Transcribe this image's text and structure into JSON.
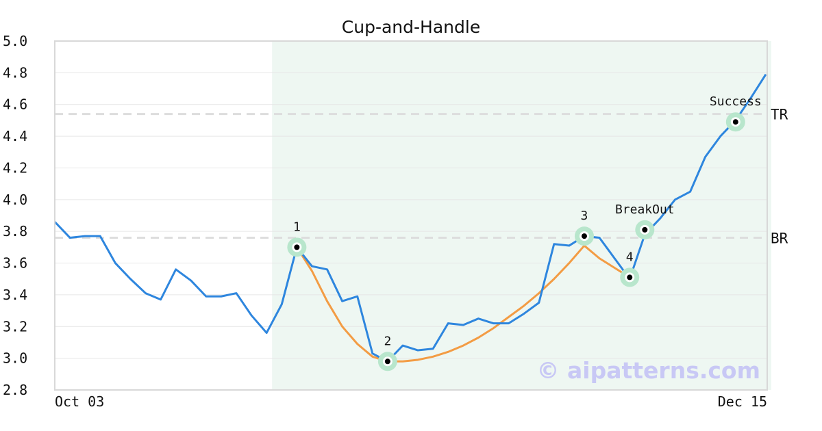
{
  "chart_data": {
    "type": "line",
    "title": "Cup-and-Handle",
    "x_tick_labels": [
      "Oct 03",
      "Dec 15"
    ],
    "ylim": [
      2.8,
      5.0
    ],
    "y_ticks": [
      "2.8",
      "3.0",
      "3.2",
      "3.4",
      "3.6",
      "3.8",
      "4.0",
      "4.2",
      "4.4",
      "4.6",
      "4.8",
      "5.0"
    ],
    "grid": true,
    "colors": {
      "price": "#2e86de",
      "cup": "#f39c44",
      "highlight": "#eef7f2",
      "marker_ring": "#b8e6cc",
      "level_line": "#dddddd",
      "watermark": "#c8c8f5"
    },
    "series": [
      {
        "values": [
          3.86,
          3.76,
          3.77,
          3.77,
          3.6,
          3.5,
          3.41,
          3.37,
          3.56,
          3.49,
          3.39,
          3.39,
          3.41,
          3.27,
          3.16,
          3.34,
          3.7,
          3.58,
          3.56,
          3.36,
          3.39,
          3.03,
          2.98,
          3.08,
          3.05,
          3.06,
          3.22,
          3.21,
          3.25,
          3.22,
          3.22,
          3.28,
          3.35,
          3.72,
          3.71,
          3.77,
          3.76,
          3.63,
          3.5,
          3.78,
          3.88,
          4.0,
          4.05,
          4.27,
          4.4,
          4.5,
          4.64,
          4.79
        ]
      }
    ],
    "cup_curve": {
      "x": [
        16,
        17,
        18,
        19,
        20,
        21,
        22,
        23,
        24,
        25,
        26,
        27,
        28,
        29,
        30,
        31,
        32,
        33,
        34,
        35,
        36,
        37,
        38
      ],
      "y": [
        3.7,
        3.55,
        3.36,
        3.2,
        3.09,
        3.01,
        2.98,
        2.98,
        2.99,
        3.01,
        3.04,
        3.08,
        3.13,
        3.19,
        3.26,
        3.33,
        3.41,
        3.5,
        3.6,
        3.71,
        3.63,
        3.57,
        3.51
      ]
    },
    "highlight_range": [
      14,
      47
    ],
    "levels": [
      {
        "label": "BR",
        "value": 3.76
      },
      {
        "label": "TR",
        "value": 4.54
      }
    ],
    "annotations": [
      {
        "label": "1",
        "x": 16,
        "y": 3.7,
        "side": "above"
      },
      {
        "label": "2",
        "x": 22,
        "y": 2.98,
        "side": "above"
      },
      {
        "label": "3",
        "x": 35,
        "y": 3.77,
        "side": "above"
      },
      {
        "label": "4",
        "x": 38,
        "y": 3.51,
        "side": "above"
      },
      {
        "label": "BreakOut",
        "x": 39,
        "y": 3.81,
        "side": "above"
      },
      {
        "label": "Success",
        "x": 45,
        "y": 4.49,
        "side": "above"
      }
    ],
    "watermark": "© aipatterns.com"
  }
}
